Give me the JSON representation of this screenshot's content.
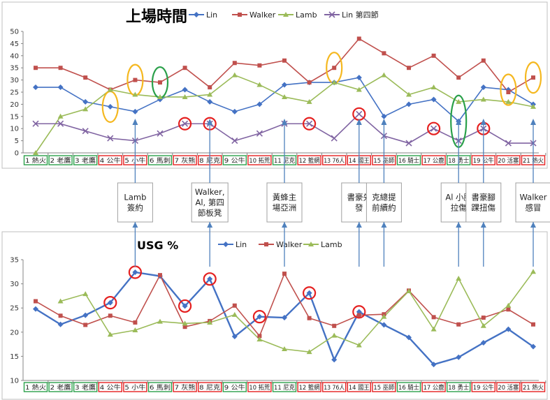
{
  "chart_data": [
    {
      "type": "line",
      "title": "上場時間",
      "ylim": [
        0,
        50
      ],
      "yticks": [
        0,
        5,
        10,
        15,
        20,
        25,
        30,
        35,
        40,
        45,
        50
      ],
      "grid": false,
      "legend_position": "top-right",
      "categories": [
        "1 熱火",
        "2 老鷹",
        "3 老鷹",
        "4 公牛",
        "5 小牛",
        "6 馬刺",
        "7 灰熊",
        "8 尼克",
        "9 公牛",
        "10 拓荒",
        "11 尼克",
        "12 籃網",
        "13 76人",
        "14 國王",
        "15 巫師",
        "16 騎士",
        "17 公鹿",
        "18 勇士",
        "19 公牛",
        "20 活塞",
        "21 熱火"
      ],
      "category_outline": [
        "green",
        "green",
        "green",
        "red",
        "red",
        "green",
        "red",
        "red",
        "green",
        "red",
        "green",
        "red",
        "red",
        "red",
        "red",
        "green",
        "red",
        "green",
        "red",
        "red",
        "red"
      ],
      "series": [
        {
          "name": "Lin",
          "color": "#4472C4",
          "marker": "diamond",
          "values": [
            27,
            27,
            21,
            19,
            17,
            22,
            26,
            21,
            17,
            20,
            28,
            29,
            29,
            31,
            15,
            20,
            22,
            13,
            27,
            26,
            20
          ]
        },
        {
          "name": "Walker",
          "color": "#C0504D",
          "marker": "square",
          "values": [
            35,
            35,
            31,
            26,
            30,
            29,
            35,
            27,
            37,
            36,
            38,
            29,
            35,
            47,
            41,
            35,
            40,
            31,
            38,
            25,
            31
          ]
        },
        {
          "name": "Lamb",
          "color": "#9BBB59",
          "marker": "triangle",
          "values": [
            0,
            15,
            18,
            26,
            24,
            23,
            23,
            24,
            32,
            28,
            23,
            21,
            29,
            26,
            32,
            24,
            27,
            21,
            22,
            21,
            19
          ]
        },
        {
          "name": "Lin 第四節",
          "color": "#8064A2",
          "marker": "x",
          "values": [
            12,
            12,
            9,
            6,
            5,
            8,
            12,
            12,
            5,
            8,
            12,
            12,
            6,
            16,
            7,
            4,
            10,
            5,
            10,
            4,
            4
          ]
        }
      ],
      "circled_points": [
        {
          "series": "Lin",
          "index": 3,
          "color": "orange"
        },
        {
          "series": "Walker",
          "index": 4,
          "color": "orange"
        },
        {
          "series": "Walker",
          "index": 5,
          "color": "green"
        },
        {
          "series": "Lin 第四節",
          "index": 6,
          "color": "red"
        },
        {
          "series": "Lin 第四節",
          "index": 7,
          "color": "red"
        },
        {
          "series": "Lin 第四節",
          "index": 11,
          "color": "red"
        },
        {
          "series": "Walker",
          "index": 12,
          "color": "orange"
        },
        {
          "series": "Lin 第四節",
          "index": 13,
          "color": "red"
        },
        {
          "series": "Lin 第四節",
          "index": 16,
          "color": "red"
        },
        {
          "series": "Lin",
          "index": 17,
          "color": "green"
        },
        {
          "series": "Lin 第四節",
          "index": 18,
          "color": "red"
        },
        {
          "series": "Lin",
          "index": 19,
          "color": "orange"
        },
        {
          "series": "Walker",
          "index": 20,
          "color": "orange"
        }
      ]
    },
    {
      "type": "line",
      "title": "USG %",
      "ylim": [
        10,
        35
      ],
      "yticks": [
        10,
        15,
        20,
        25,
        30,
        35
      ],
      "grid": false,
      "legend_position": "top",
      "categories": [
        "1 熱火",
        "2 老鷹",
        "3 老鷹",
        "4 公牛",
        "5 小牛",
        "6 馬刺",
        "7 灰熊",
        "8 尼克",
        "9 公牛",
        "10 拓荒",
        "11 尼克",
        "12 籃網",
        "13 76人",
        "14 國王",
        "15 巫師",
        "16 騎士",
        "17 公鹿",
        "18 勇士",
        "19 公牛",
        "20 活塞",
        "21 熱火"
      ],
      "category_outline": [
        "green",
        "green",
        "green",
        "red",
        "red",
        "green",
        "red",
        "red",
        "green",
        "red",
        "green",
        "red",
        "red",
        "red",
        "red",
        "green",
        "red",
        "green",
        "red",
        "red",
        "red"
      ],
      "series": [
        {
          "name": "Lin",
          "color": "#4472C4",
          "marker": "diamond",
          "values": [
            24.8,
            21.6,
            23.5,
            26.1,
            32.4,
            31.6,
            25.4,
            31,
            19.1,
            23.2,
            23,
            28.1,
            14.3,
            24.2,
            21.5,
            18.9,
            13.3,
            14.8,
            17.8,
            20.6,
            17
          ]
        },
        {
          "name": "Walker",
          "color": "#C0504D",
          "marker": "square",
          "values": [
            26.4,
            23.4,
            21.5,
            23.4,
            22,
            31.8,
            21.1,
            22.3,
            25.5,
            19.2,
            32.1,
            22.9,
            21.3,
            23.5,
            23.7,
            28.6,
            23.1,
            21.6,
            23,
            24.7,
            21.6
          ]
        },
        {
          "name": "Lamb",
          "color": "#9BBB59",
          "marker": "triangle",
          "values": [
            null,
            26.4,
            27.9,
            19.5,
            20.4,
            22.2,
            21.8,
            22,
            23.6,
            18.5,
            16.5,
            15.9,
            19.3,
            17.3,
            23.2,
            28.5,
            20.6,
            31.1,
            21.3,
            25.5,
            32.5
          ]
        }
      ],
      "circled_points": [
        {
          "series": "Lin",
          "index": 3,
          "color": "red"
        },
        {
          "series": "Lin",
          "index": 4,
          "color": "red"
        },
        {
          "series": "Lin",
          "index": 6,
          "color": "red"
        },
        {
          "series": "Lin",
          "index": 7,
          "color": "red"
        },
        {
          "series": "Lin",
          "index": 9,
          "color": "red"
        },
        {
          "series": "Lin",
          "index": 11,
          "color": "red"
        },
        {
          "series": "Lin",
          "index": 13,
          "color": "red"
        }
      ]
    }
  ],
  "annotations": [
    {
      "lines": [
        "Lamb",
        "簽約"
      ],
      "index": 4
    },
    {
      "lines": [
        "Walker,",
        "Al, 第四",
        "節板凳"
      ],
      "index": 7
    },
    {
      "lines": [
        "黃蜂主",
        "場亞洲"
      ],
      "index": 10
    },
    {
      "lines": [
        "書豪先",
        "發"
      ],
      "index": 13
    },
    {
      "lines": [
        "克總提",
        "前續約"
      ],
      "index": 14
    },
    {
      "lines": [
        "Al 小腿",
        "拉傷"
      ],
      "index": 17
    },
    {
      "lines": [
        "書豪腳",
        "踝扭傷"
      ],
      "index": 18
    },
    {
      "lines": [
        "Walker",
        "感冒"
      ],
      "index": 20
    }
  ],
  "colors": {
    "red_outline": "#E52020",
    "green_outline": "#2AA04A",
    "orange_oval": "#F5B820",
    "green_oval": "#2AA04A",
    "arrow": "#4F81BD",
    "box_border": "#A0A0A0"
  }
}
